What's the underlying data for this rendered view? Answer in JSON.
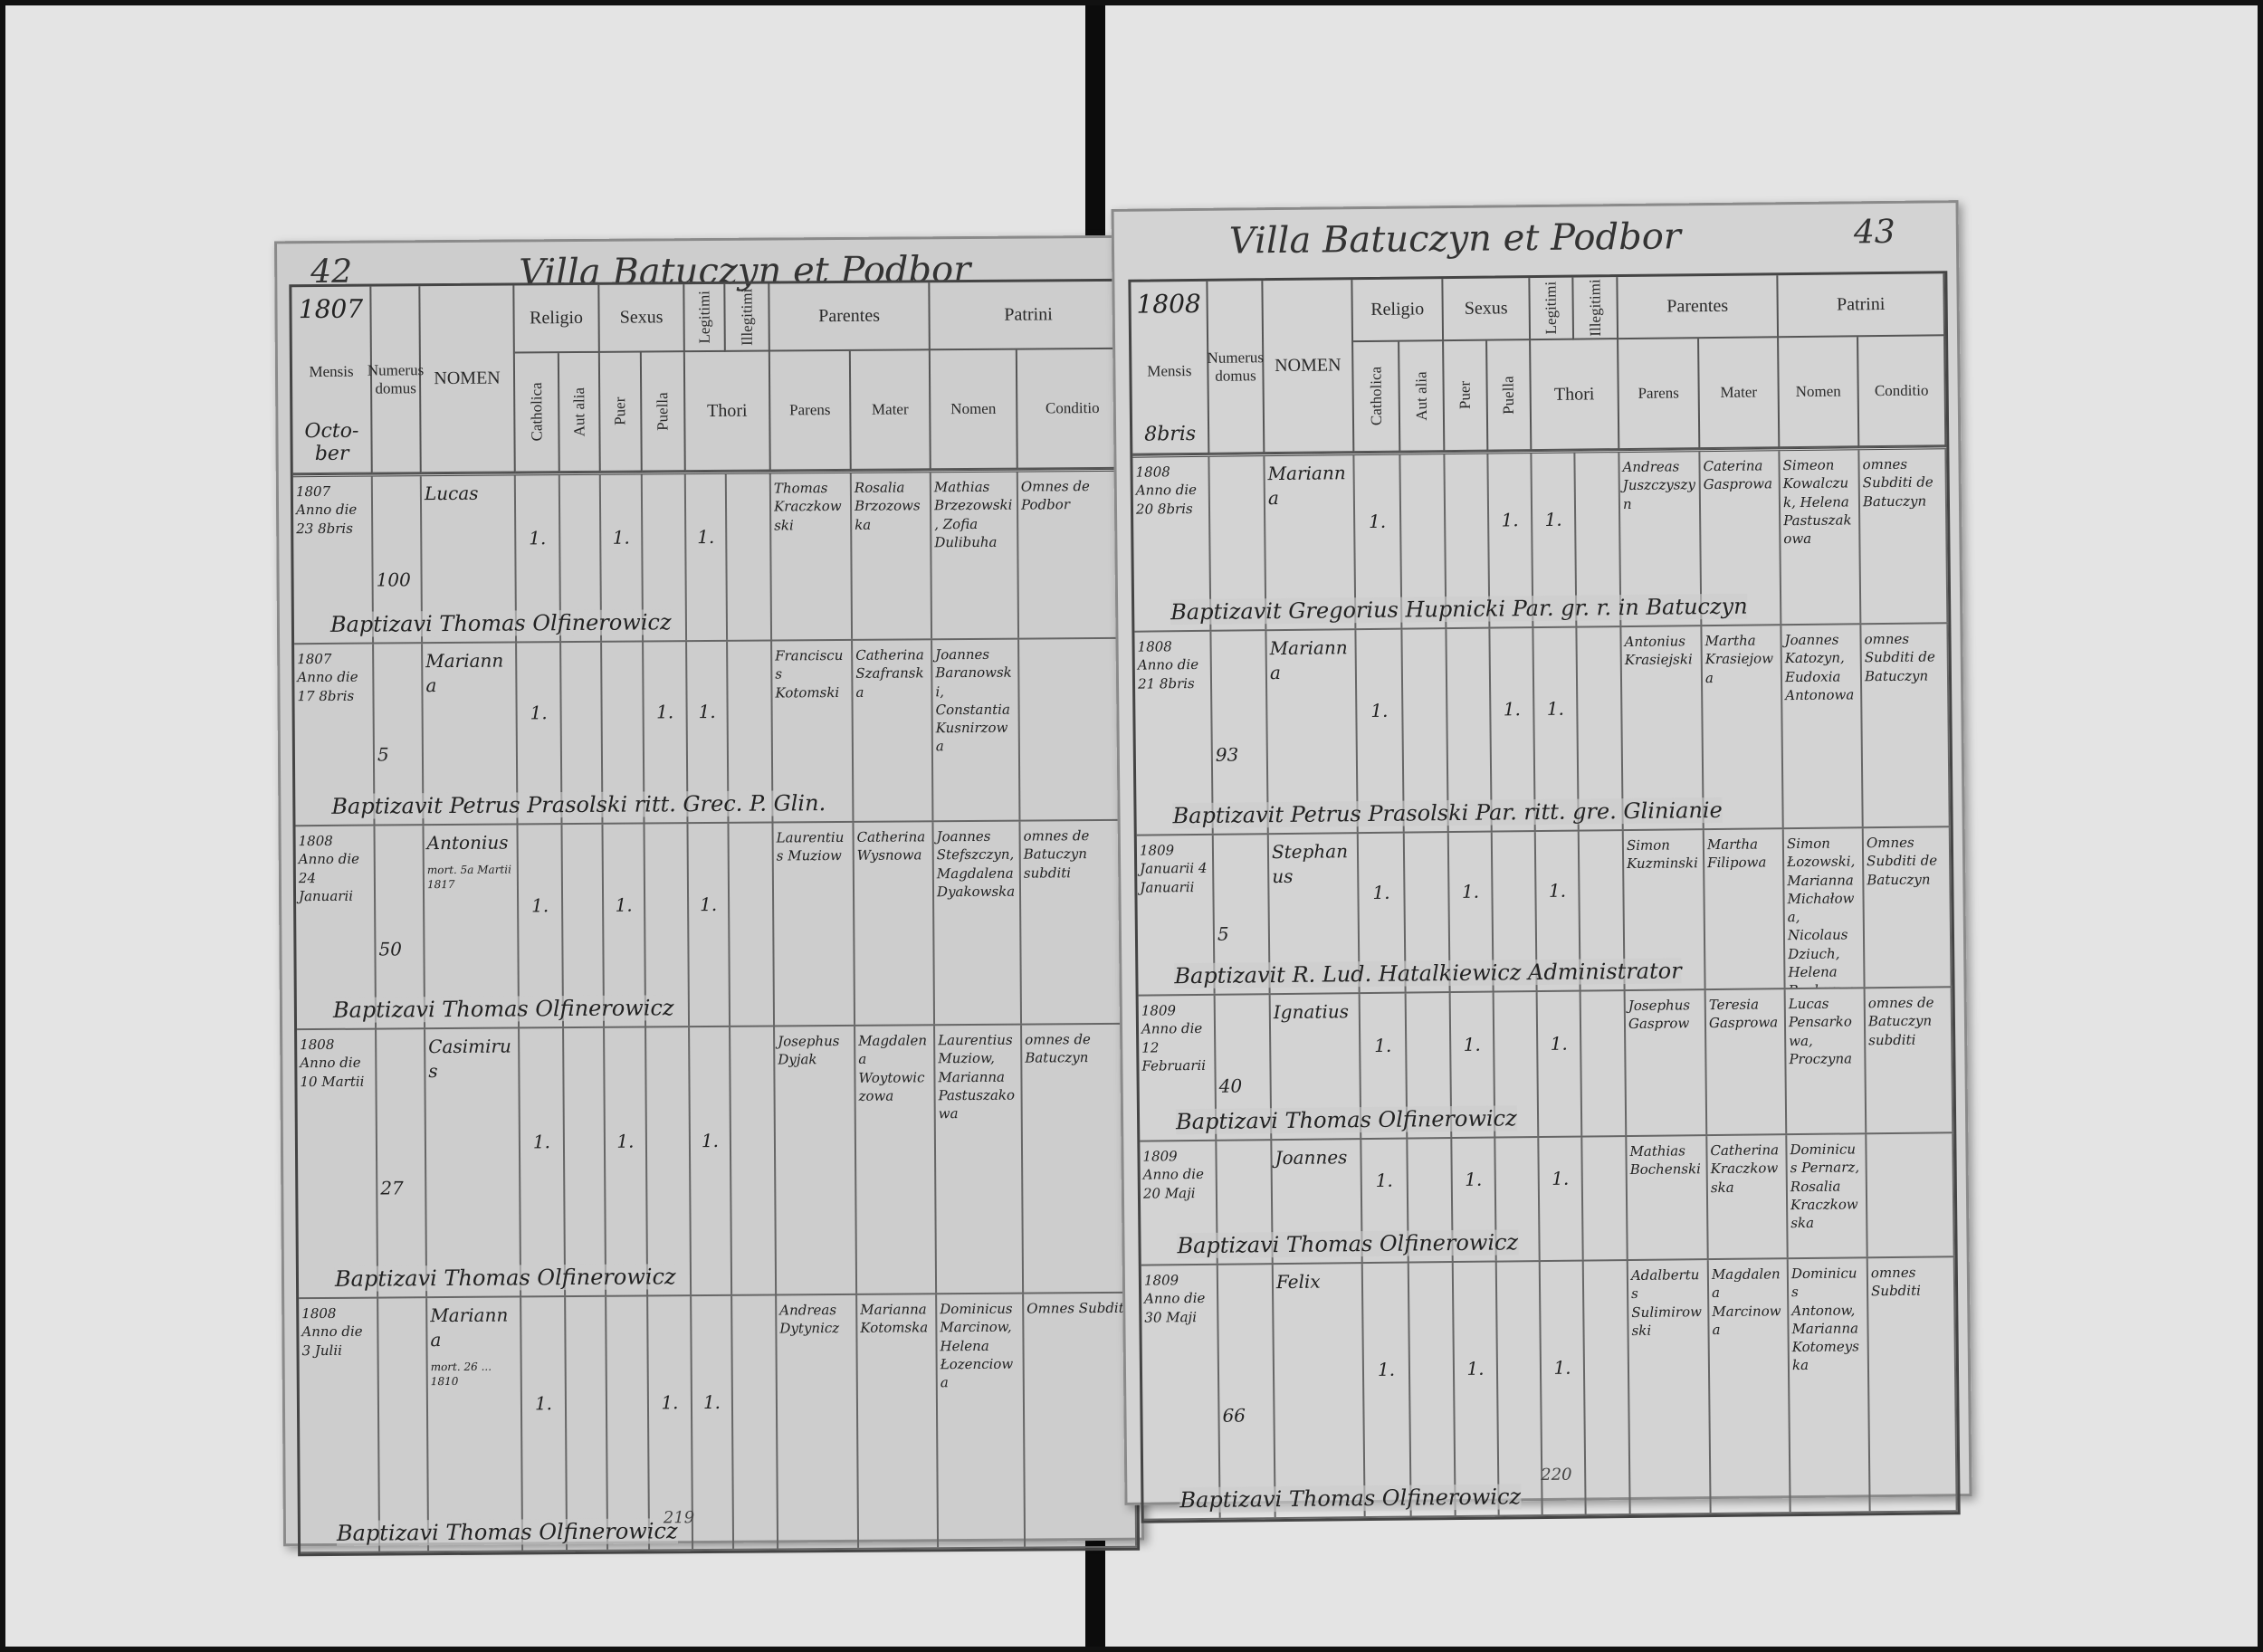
{
  "header": {
    "mensis": "Mensis",
    "numerus": "Numerus domus",
    "nomen": "NOMEN",
    "religio": "Religio",
    "catholica": "Catholica",
    "aut_alia": "Aut alia",
    "sexus": "Sexus",
    "puer": "Puer",
    "puella": "Puella",
    "legitimi": "Legitimi",
    "illegitimi": "Illegitimi",
    "thori": "Thori",
    "parentes": "Parentes",
    "parens": "Parens",
    "mater": "Mater",
    "patrini": "Patrini",
    "patrini_nomen": "Nomen",
    "conditio": "Conditio"
  },
  "left_page": {
    "page_number": "42",
    "title": "Villa Batuczyn et Podbor",
    "year": "1807",
    "month": "Octo- ber",
    "footer_number": "219",
    "entries": [
      {
        "date": "1807 Anno die 23 8bris",
        "house": "100",
        "name": "Lucas",
        "note": "",
        "marks": [
          "catholica",
          "puer",
          "legitimi"
        ],
        "parens": "Thomas Kraczkowski",
        "mater": "Rosalia Brzozowska",
        "patrini": "Mathias Brzezowski, Zofia Dulibuha",
        "conditio": "Omnes de Podbor",
        "baptism": "Baptizavi Thomas Olfinerowicz"
      },
      {
        "date": "1807 Anno die 17 8bris",
        "house": "5",
        "name": "Marianna",
        "note": "",
        "marks": [
          "catholica",
          "puella",
          "legitimi"
        ],
        "parens": "Franciscus Kotomski",
        "mater": "Catherina Szafranska",
        "patrini": "Joannes Baranowski, Constantia Kusnirzowa",
        "conditio": "",
        "baptism": "Baptizavit Petrus Prasolski ritt. Grec. P. Glin."
      },
      {
        "date": "1808 Anno die 24 Januarii",
        "house": "50",
        "name": "Antonius",
        "note": "mort. 5a Martii 1817",
        "marks": [
          "catholica",
          "puer",
          "legitimi"
        ],
        "parens": "Laurentius Muziow",
        "mater": "Catherina Wysnowa",
        "patrini": "Joannes Stefszczyn, Magdalena Dyakowska",
        "conditio": "omnes de Batuczyn subditi",
        "baptism": "Baptizavi Thomas Olfinerowicz"
      },
      {
        "date": "1808 Anno die 10 Martii",
        "house": "27",
        "name": "Casimirus",
        "note": "",
        "marks": [
          "catholica",
          "puer",
          "legitimi"
        ],
        "parens": "Josephus Dyjak",
        "mater": "Magdalena Woytowiczowa",
        "patrini": "Laurentius Muziow, Marianna Pastuszakowa",
        "conditio": "omnes de Batuczyn",
        "baptism": "Baptizavi Thomas Olfinerowicz"
      },
      {
        "date": "1808 Anno die 3 Julii",
        "house": "",
        "name": "Marianna",
        "note": "mort. 26 ... 1810",
        "marks": [
          "catholica",
          "puella",
          "legitimi"
        ],
        "parens": "Andreas Dytynicz",
        "mater": "Marianna Kotomska",
        "patrini": "Dominicus Marcinow, Helena Łozenciowa",
        "conditio": "Omnes Subditi",
        "baptism": "Baptizavi Thomas Olfinerowicz"
      }
    ]
  },
  "right_page": {
    "page_number": "43",
    "title": "Villa Batuczyn et Podbor",
    "year": "1808",
    "month": "8bris",
    "footer_number": "220",
    "entries": [
      {
        "date": "1808 Anno die 20 8bris",
        "house": "",
        "name": "Marianna",
        "note": "",
        "marks": [
          "catholica",
          "puella",
          "legitimi"
        ],
        "parens": "Andreas Juszczyszyn",
        "mater": "Caterina Gasprowa",
        "patrini": "Simeon Kowalczuk, Helena Pastuszakowa",
        "conditio": "omnes Subditi de Batuczyn",
        "baptism": "Baptizavit Gregorius Hupnicki Par. gr. r. in Batuczyn"
      },
      {
        "date": "1808 Anno die 21 8bris",
        "house": "93",
        "name": "Marianna",
        "note": "",
        "marks": [
          "catholica",
          "puella",
          "legitimi"
        ],
        "parens": "Antonius Krasiejski",
        "mater": "Martha Krasiejowa",
        "patrini": "Joannes Katozyn, Eudoxia Antonowa",
        "conditio": "omnes Subditi de Batuczyn",
        "baptism": "Baptizavit Petrus Prasolski Par. ritt. gre. Glinianie"
      },
      {
        "date": "1809 Januarii 4 Januarii",
        "house": "5",
        "name": "Stephanus",
        "note": "",
        "marks": [
          "catholica",
          "puer",
          "legitimi"
        ],
        "parens": "Simon Kuzminski",
        "mater": "Martha Filipowa",
        "patrini": "Simon Łozowski, Marianna Michałowa, Nicolaus Dziuch, Helena Bechuzyna",
        "conditio": "Omnes Subditi de Batuczyn",
        "baptism": "Baptizavit R. Lud. Hatalkiewicz Administrator"
      },
      {
        "date": "1809 Anno die 12 Februarii",
        "house": "40",
        "name": "Ignatius",
        "note": "",
        "marks": [
          "catholica",
          "puer",
          "legitimi"
        ],
        "parens": "Josephus Gasprow",
        "mater": "Teresia Gasprowa",
        "patrini": "Lucas Pensarkowa, Proczyna",
        "conditio": "omnes de Batuczyn subditi",
        "baptism": "Baptizavi Thomas Olfinerowicz"
      },
      {
        "date": "1809 Anno die 20 Maji",
        "house": "",
        "name": "Joannes",
        "note": "",
        "marks": [
          "catholica",
          "puer",
          "legitimi"
        ],
        "parens": "Mathias Bochenski",
        "mater": "Catherina Kraczkowska",
        "patrini": "Dominicus Pernarz, Rosalia Kraczkowska",
        "conditio": "",
        "baptism": "Baptizavi Thomas Olfinerowicz"
      },
      {
        "date": "1809 Anno die 30 Maji",
        "house": "66",
        "name": "Felix",
        "note": "",
        "marks": [
          "catholica",
          "puer",
          "legitimi"
        ],
        "parens": "Adalbertus Sulimirowski",
        "mater": "Magdalena Marcinowa",
        "patrini": "Dominicus Antonow, Marianna Kotomeyska",
        "conditio": "omnes Subditi",
        "baptism": "Baptizavi Thomas Olfinerowicz"
      }
    ]
  }
}
